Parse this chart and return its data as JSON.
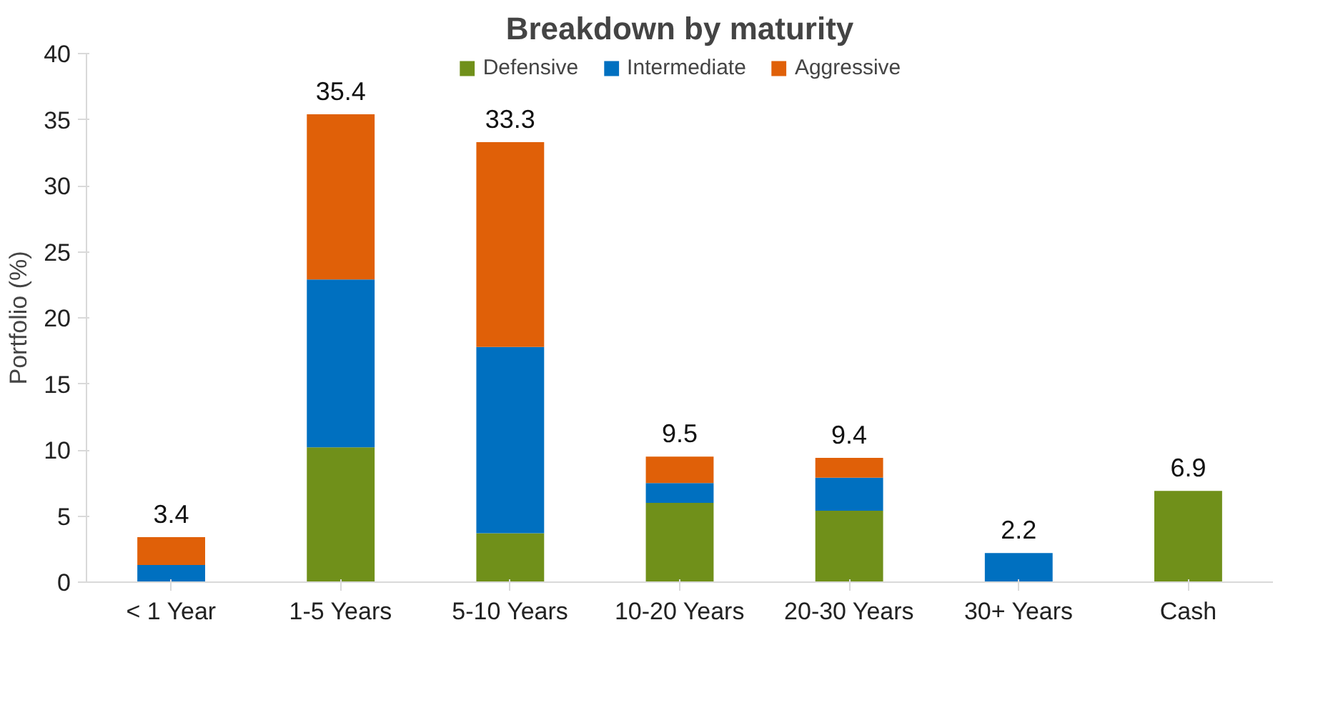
{
  "chart_data": {
    "type": "bar",
    "title": "Breakdown by maturity",
    "ylabel": "Portfolio (%)",
    "categories": [
      "< 1 Year",
      "1-5 Years",
      "5-10 Years",
      "10-20 Years",
      "20-30 Years",
      "30+ Years",
      "Cash"
    ],
    "stacked": true,
    "series": [
      {
        "name": "Defensive",
        "color": "#70901a",
        "values": [
          null,
          10.2,
          3.7,
          6.0,
          5.4,
          null,
          6.9
        ]
      },
      {
        "name": "Intermediate",
        "color": "#0070c0",
        "values": [
          1.3,
          12.7,
          14.1,
          1.5,
          2.5,
          2.2,
          null
        ]
      },
      {
        "name": "Aggressive",
        "color": "#e06008",
        "values": [
          2.1,
          12.5,
          15.5,
          2.0,
          1.5,
          null,
          null
        ]
      }
    ],
    "totals": [
      "3.4",
      "35.4",
      "33.3",
      "9.5",
      "9.4",
      "2.2",
      "6.9"
    ],
    "ylim": [
      0,
      40
    ],
    "yticks": [
      0,
      5,
      10,
      15,
      20,
      25,
      30,
      35,
      40
    ],
    "grid": false,
    "legend": "top"
  }
}
